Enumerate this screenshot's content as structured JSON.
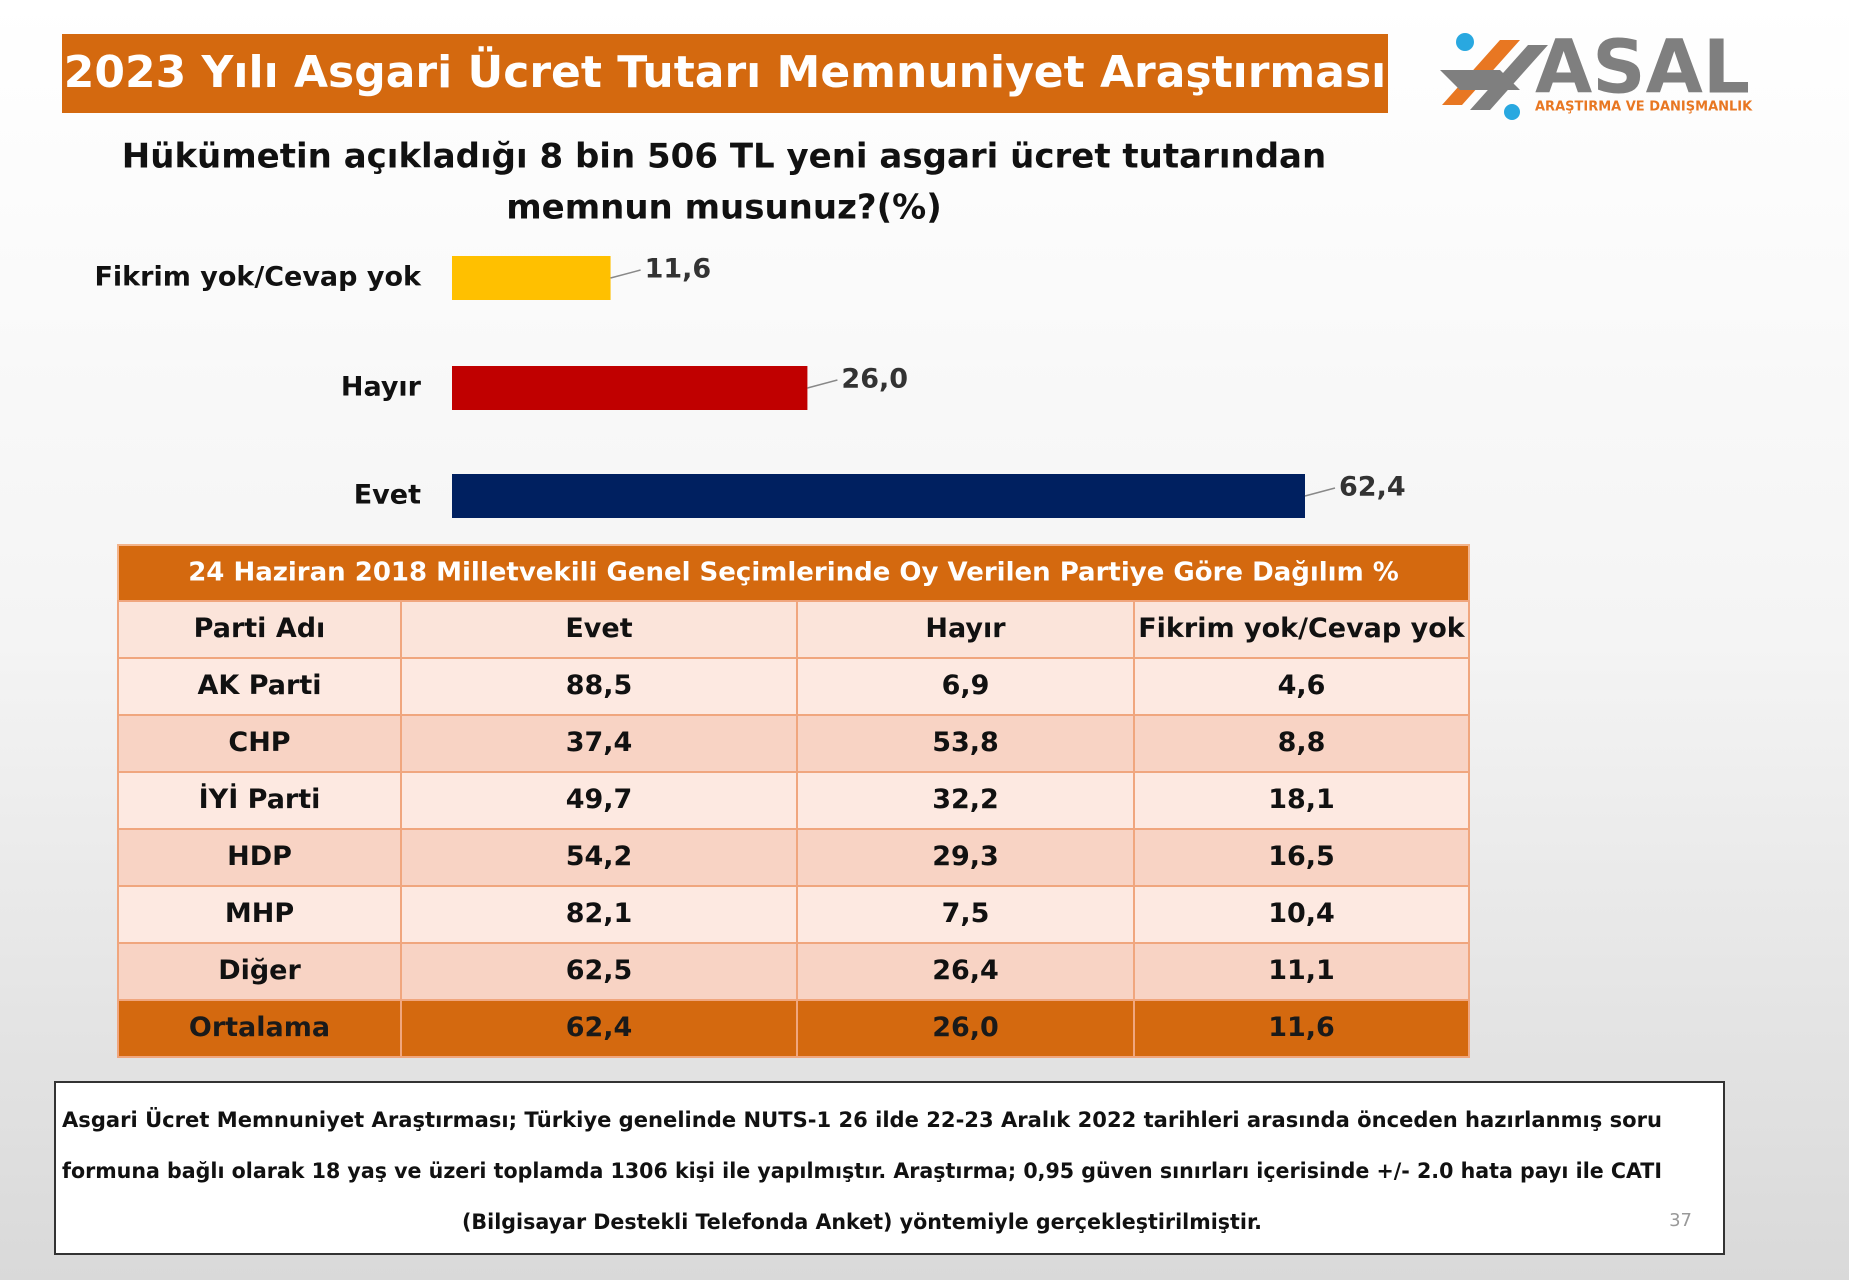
{
  "header": {
    "title": "2023 Yılı Asgari Ücret Tutarı Memnuniyet Araştırması"
  },
  "logo": {
    "name": "ASAL",
    "subtitle": "ARAŞTIRMA VE DANIŞMANLIK"
  },
  "chart_data": {
    "type": "hbar",
    "title": [
      "Hükümetin açıkladığı 8 bin 506 TL yeni asgari ücret tutarından",
      "memnun musunuz?(%)"
    ],
    "categories": [
      "Fikrim yok/Cevap yok",
      "Hayır",
      "Evet"
    ],
    "values": [
      11.6,
      26.0,
      62.4
    ],
    "value_labels": [
      "11,6",
      "26,0",
      "62,4"
    ],
    "colors": [
      "#ffc000",
      "#c00000",
      "#002060"
    ]
  },
  "table": {
    "title": "24 Haziran 2018 Milletvekili Genel Seçimlerinde Oy Verilen Partiye Göre Dağılım %",
    "columns": [
      "Parti Adı",
      "Evet",
      "Hayır",
      "Fikrim yok/Cevap yok"
    ],
    "rows": [
      [
        "AK Parti",
        "88,5",
        "6,9",
        "4,6"
      ],
      [
        "CHP",
        "37,4",
        "53,8",
        "8,8"
      ],
      [
        "İYİ Parti",
        "49,7",
        "32,2",
        "18,1"
      ],
      [
        "HDP",
        "54,2",
        "29,3",
        "16,5"
      ],
      [
        "MHP",
        "82,1",
        "7,5",
        "10,4"
      ],
      [
        "Diğer",
        "62,5",
        "26,4",
        "11,1"
      ]
    ],
    "total": [
      "Ortalama",
      "62,4",
      "26,0",
      "11,6"
    ]
  },
  "footer": {
    "lines": [
      "Asgari Ücret Memnuniyet Araştırması; Türkiye genelinde NUTS-1 26 ilde 22-23 Aralık 2022 tarihleri arasında önceden hazırlanmış soru",
      "formuna bağlı olarak 18 yaş ve üzeri toplamda 1306 kişi ile yapılmıştır. Araştırma; 0,95 güven sınırları içerisinde +/- 2.0 hata payı ile CATI",
      "(Bilgisayar Destekli Telefonda Anket) yöntemiyle gerçekleştirilmiştir."
    ],
    "page_number": "37"
  }
}
